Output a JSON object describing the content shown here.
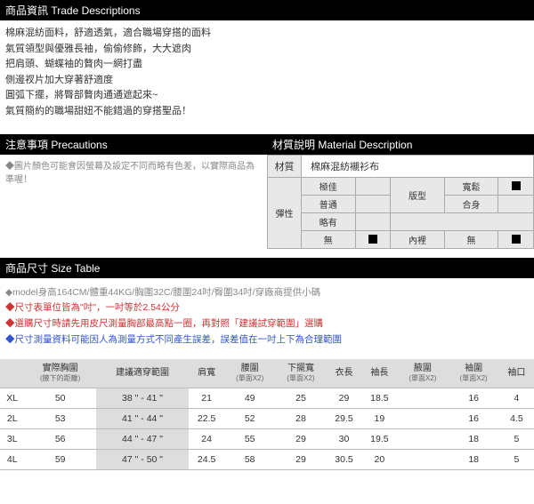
{
  "trade": {
    "header": "商品資訊 Trade Descriptions",
    "lines": [
      "棉麻混紡面料，舒適透氣，適合職場穿搭的面料",
      "氣質領型與優雅長袖，偷偷修飾，大大遮肉",
      "把肩頭、蝴蝶袖的贅肉一網打盡",
      "側邊衩片加大穿著舒適度",
      "圓弧下擺，將臀部贅肉通通遮起來~",
      "氣質簡約的職場甜妞不能錯過的穿搭聖品！"
    ]
  },
  "precautions": {
    "header": "注意事項 Precautions",
    "text": "◆圖片顏色可能會因螢幕及設定不同而略有色差，以實際商品為準喔！"
  },
  "material": {
    "header": "材質說明 Material Description",
    "mat_label": "材質",
    "mat_value": "棉麻混紡襯衫布",
    "elastic_label": "彈性",
    "elastic": [
      {
        "name": "極佳",
        "checked": false
      },
      {
        "name": "普通",
        "checked": false
      },
      {
        "name": "略有",
        "checked": false
      },
      {
        "name": "無",
        "checked": true
      }
    ],
    "fit_label": "版型",
    "fit": [
      {
        "name": "寬鬆",
        "checked": true
      },
      {
        "name": "合身",
        "checked": false
      }
    ],
    "lining_label": "內裡",
    "lining": [
      {
        "name": "無",
        "checked": true
      }
    ]
  },
  "size": {
    "header": "商品尺寸 Size Table",
    "notes": {
      "gray": "◆model身高164CM/體重44KG/胸圍32C/腰圍24吋/臀圍34吋/穿廠商提供小碼",
      "red1": "◆尺寸表單位皆為\"吋\"，一吋等於2.54公分",
      "red2": "◆選購尺寸時請先用皮尺測量胸部最高點一圈，再對照「建議試穿範圍」選購",
      "blue": "◆尺寸測量資料可能因人為測量方式不同產生誤差，誤差值在一吋上下為合理範圍"
    },
    "columns": [
      {
        "h": "",
        "sub": ""
      },
      {
        "h": "實際胸圍",
        "sub": "(腋下的距離)"
      },
      {
        "h": "建議適穿範圍",
        "sub": ""
      },
      {
        "h": "肩寬",
        "sub": ""
      },
      {
        "h": "腰圍",
        "sub": "(單面X2)"
      },
      {
        "h": "下擺寬",
        "sub": "(單面X2)"
      },
      {
        "h": "衣長",
        "sub": ""
      },
      {
        "h": "袖長",
        "sub": ""
      },
      {
        "h": "腋圍",
        "sub": "(單面X2)"
      },
      {
        "h": "袖圍",
        "sub": "(單面X2)"
      },
      {
        "h": "袖口",
        "sub": ""
      }
    ],
    "rows": [
      {
        "size": "XL",
        "bust": "50",
        "range": "38 \" - 41 \"",
        "shoulder": "21",
        "waist": "49",
        "hem": "25",
        "length": "29",
        "sleeve": "18.5",
        "arm": "",
        "scuff": "16",
        "cuff": "4"
      },
      {
        "size": "2L",
        "bust": "53",
        "range": "41 \" - 44 \"",
        "shoulder": "22.5",
        "waist": "52",
        "hem": "28",
        "length": "29.5",
        "sleeve": "19",
        "arm": "",
        "scuff": "16",
        "cuff": "4.5"
      },
      {
        "size": "3L",
        "bust": "56",
        "range": "44 \" - 47 \"",
        "shoulder": "24",
        "waist": "55",
        "hem": "29",
        "length": "30",
        "sleeve": "19.5",
        "arm": "",
        "scuff": "18",
        "cuff": "5"
      },
      {
        "size": "4L",
        "bust": "59",
        "range": "47 \" - 50 \"",
        "shoulder": "24.5",
        "waist": "58",
        "hem": "29",
        "length": "30.5",
        "sleeve": "20",
        "arm": "",
        "scuff": "18",
        "cuff": "5"
      }
    ]
  }
}
